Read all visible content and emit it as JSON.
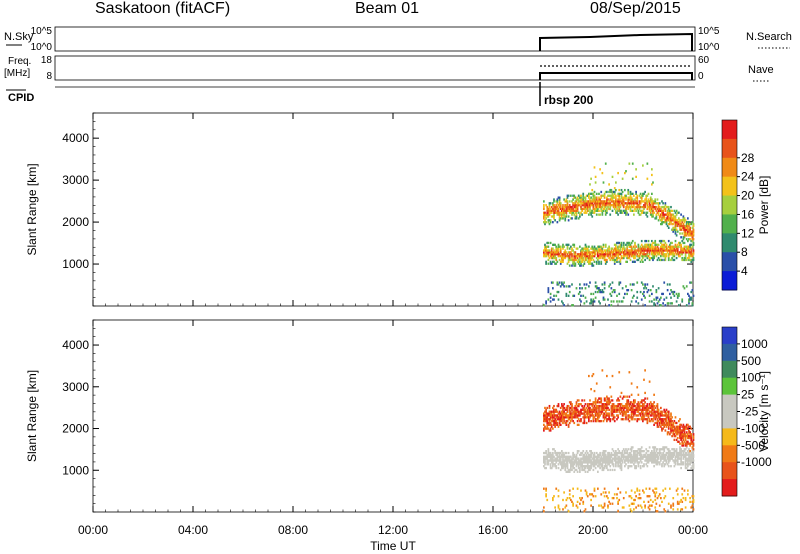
{
  "header": {
    "station": "Saskatoon (fitACF)",
    "beam": "Beam 01",
    "date": "08/Sep/2015"
  },
  "strip": {
    "nsky_label": "N.Sky",
    "nsearch_label": "N.Search",
    "freq_label_1": "Freq.",
    "freq_label_2": "[MHz]",
    "nave_label": "Nave",
    "cpid_label": "CPID",
    "cpid_value": "rbsp 200",
    "noise_ticks": [
      "10^5",
      "10^0"
    ],
    "freq_ticks": [
      "18",
      "8"
    ],
    "nave_ticks": [
      "60",
      "0"
    ]
  },
  "chart_data": [
    {
      "type": "heatmap",
      "panel": "power",
      "xlabel": "",
      "ylabel": "Slant Range [km]",
      "x_ticks": [
        "00:00",
        "04:00",
        "08:00",
        "12:00",
        "16:00",
        "20:00",
        "00:00"
      ],
      "xlim": [
        0,
        24
      ],
      "ylim": [
        0,
        4600
      ],
      "y_ticks": [
        1000,
        2000,
        3000,
        4000
      ],
      "colorbar_label": "Power [dB]",
      "colorbar_ticks": [
        "4",
        "8",
        "12",
        "16",
        "20",
        "24",
        "28"
      ],
      "colorbar_colors": [
        "#0b1cd6",
        "#2a4fa8",
        "#2f8a6e",
        "#51b04c",
        "#a6cf3e",
        "#f3c21a",
        "#f08a16",
        "#e8531a",
        "#e31c1c"
      ],
      "data_window_ut": [
        18.0,
        24.0
      ],
      "bands": [
        {
          "range_km": [
            1000,
            1450
          ],
          "level": "high"
        },
        {
          "range_km": [
            1900,
            2500
          ],
          "level": "high"
        },
        {
          "range_km": [
            200,
            600
          ],
          "level": "low"
        }
      ]
    },
    {
      "type": "heatmap",
      "panel": "velocity",
      "xlabel": "Time UT",
      "ylabel": "Slant Range [km]",
      "x_ticks": [
        "00:00",
        "04:00",
        "08:00",
        "12:00",
        "16:00",
        "20:00",
        "00:00"
      ],
      "xlim": [
        0,
        24
      ],
      "ylim": [
        0,
        4600
      ],
      "y_ticks": [
        1000,
        2000,
        3000,
        4000
      ],
      "colorbar_label": "Velocity [m s⁻¹]",
      "colorbar_ticks": [
        "1000",
        "500",
        "100",
        "25",
        "-25",
        "-100",
        "-500",
        "-1000"
      ],
      "colorbar_colors": [
        "#2a3fc9",
        "#2f5fa0",
        "#3f8a5c",
        "#5cc43a",
        "#c8c8c0",
        "#c8c8c0",
        "#f5b91a",
        "#f07a16",
        "#e8531a",
        "#e31c1c"
      ],
      "data_window_ut": [
        18.0,
        24.0
      ],
      "bands": [
        {
          "range_km": [
            1000,
            1450
          ],
          "class": "ground"
        },
        {
          "range_km": [
            1900,
            2500
          ],
          "class": "receding"
        }
      ]
    }
  ]
}
